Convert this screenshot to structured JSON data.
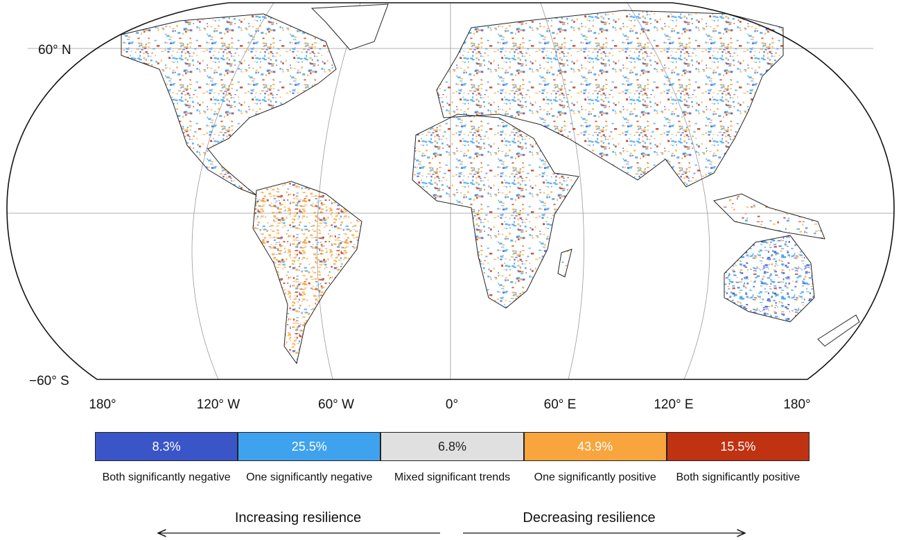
{
  "map": {
    "latitude_labels": [
      "60° N",
      "−60° S"
    ],
    "longitude_labels": [
      "180°",
      "120° W",
      "60° W",
      "0°",
      "60° E",
      "120° E",
      "180°"
    ]
  },
  "legend": {
    "items": [
      {
        "share": "8.3%",
        "label": "Both significantly negative",
        "color": "#3a55c8"
      },
      {
        "share": "25.5%",
        "label": "One significantly negative",
        "color": "#3ea2ee"
      },
      {
        "share": "6.8%",
        "label": "Mixed significant trends",
        "color": "#e0e0e0"
      },
      {
        "share": "43.9%",
        "label": "One significantly positive",
        "color": "#f8a53d"
      },
      {
        "share": "15.5%",
        "label": "Both significantly positive",
        "color": "#bf3212"
      }
    ]
  },
  "arrows": {
    "left": "Increasing resilience",
    "right": "Decreasing resilience"
  }
}
